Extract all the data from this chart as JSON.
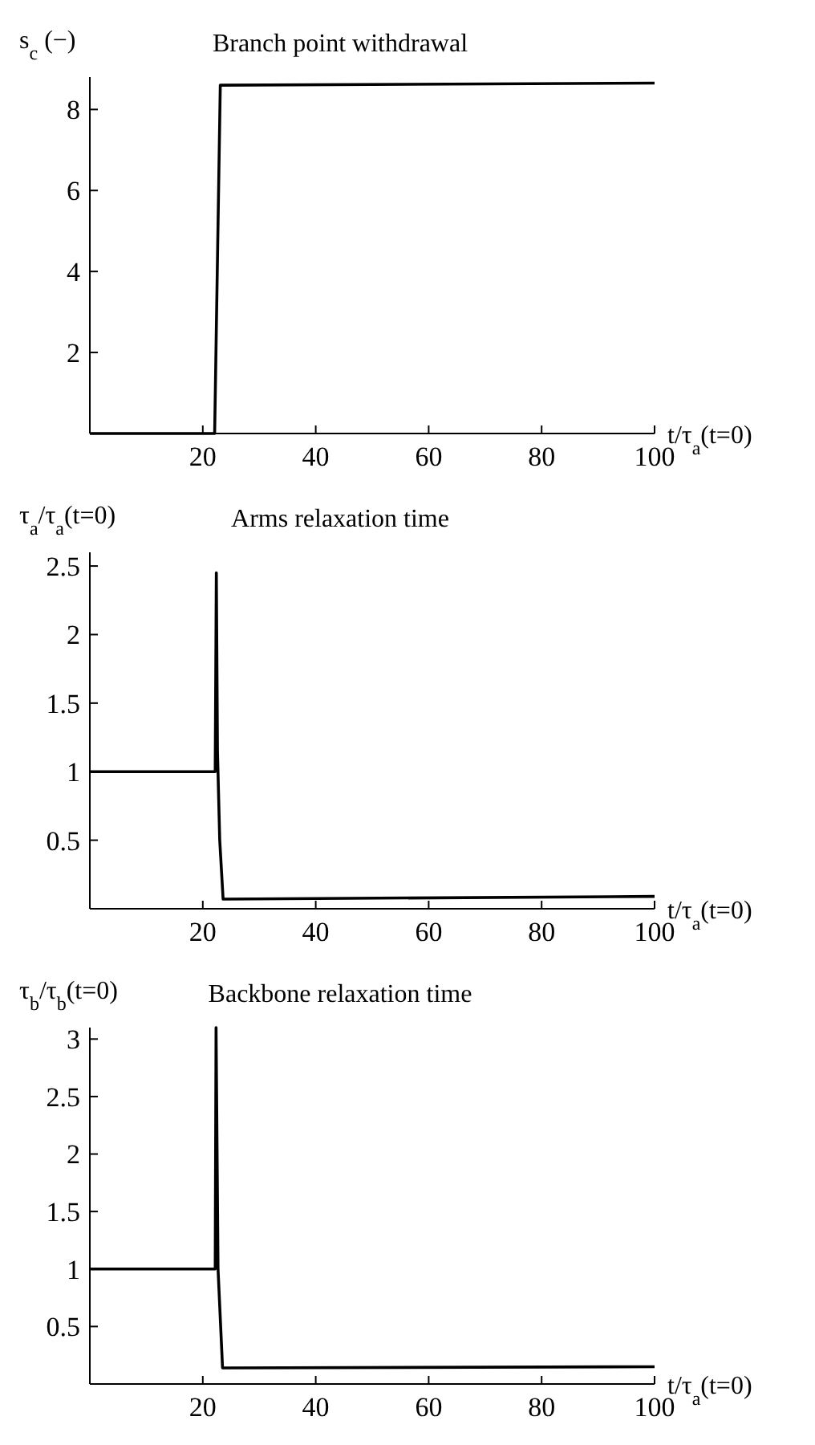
{
  "chart_data": [
    {
      "type": "line",
      "title": "Branch point withdrawal",
      "ylabel": "s$_{c}$ (−)",
      "xlabel": "t/τ$_{a}$(t=0)",
      "xlim": [
        0,
        100
      ],
      "xticks": [
        20,
        40,
        60,
        80,
        100
      ],
      "ylim": [
        0,
        8.8
      ],
      "yticks": [
        2,
        4,
        6,
        8
      ],
      "series": [
        {
          "color": "#000000",
          "x": [
            0,
            22.1,
            23.1,
            100
          ],
          "values": [
            0,
            0,
            8.6,
            8.65
          ]
        }
      ]
    },
    {
      "type": "line",
      "title": "Arms relaxation time",
      "ylabel": "τ$_{a}$/τ$_{a}$(t=0)",
      "xlabel": "t/τ$_{a}$(t=0)",
      "xlim": [
        0,
        100
      ],
      "xticks": [
        20,
        40,
        60,
        80,
        100
      ],
      "ylim": [
        0,
        2.6
      ],
      "yticks": [
        0.5,
        1,
        1.5,
        2,
        2.5
      ],
      "series": [
        {
          "color": "#000000",
          "x": [
            0,
            22.2,
            22.4,
            22.6,
            23.0,
            23.6,
            100
          ],
          "values": [
            1,
            1,
            2.45,
            1.15,
            0.5,
            0.07,
            0.09
          ]
        }
      ]
    },
    {
      "type": "line",
      "title": "Backbone relaxation time",
      "ylabel": "τ$_{b}$/τ$_{b}$(t=0)",
      "xlabel": "t/τ$_{a}$(t=0)",
      "xlim": [
        0,
        100
      ],
      "xticks": [
        20,
        40,
        60,
        80,
        100
      ],
      "ylim": [
        0,
        3.1
      ],
      "yticks": [
        0.5,
        1,
        1.5,
        2,
        2.5,
        3
      ],
      "series": [
        {
          "color": "#000000",
          "x": [
            0,
            22.2,
            22.35,
            22.7,
            23.5,
            100
          ],
          "values": [
            1,
            1,
            3.1,
            1,
            0.14,
            0.15
          ]
        }
      ]
    }
  ]
}
